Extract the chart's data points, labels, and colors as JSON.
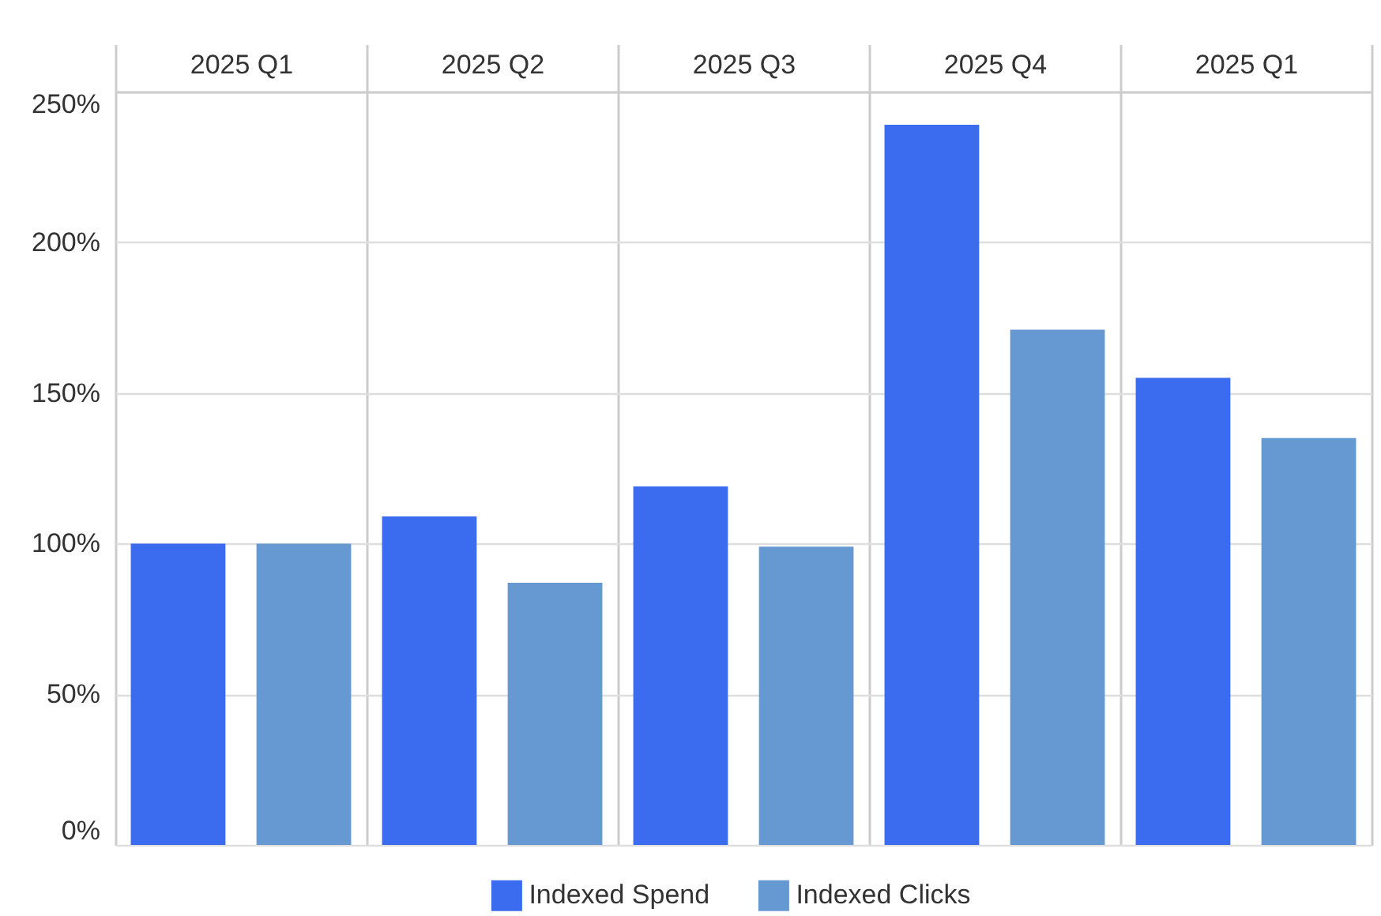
{
  "chart_data": {
    "type": "bar",
    "categories": [
      "2025 Q1",
      "2025 Q2",
      "2025 Q3",
      "2025 Q4",
      "2025 Q1"
    ],
    "series": [
      {
        "name": "Indexed Spend",
        "color": "#3b6bef",
        "values": [
          100,
          109,
          119,
          239,
          155
        ]
      },
      {
        "name": "Indexed Clicks",
        "color": "#6699d2",
        "values": [
          100,
          87,
          99,
          171,
          135
        ]
      }
    ],
    "ylim": [
      0,
      250
    ],
    "yticks": [
      {
        "value": 0,
        "label": "0%"
      },
      {
        "value": 50,
        "label": "50%"
      },
      {
        "value": 100,
        "label": "100%"
      },
      {
        "value": 150,
        "label": "150%"
      },
      {
        "value": 200,
        "label": "200%"
      },
      {
        "value": 250,
        "label": "250%"
      }
    ],
    "grid": true,
    "legend": "bottom"
  }
}
